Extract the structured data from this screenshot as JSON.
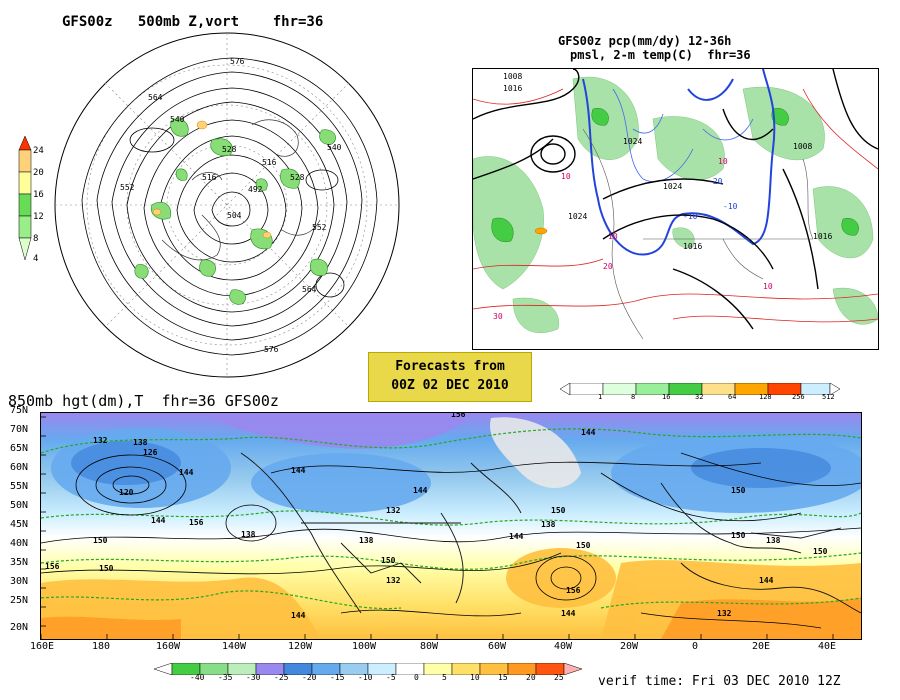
{
  "panel_polar": {
    "title": "GFS00z   500mb Z,vort    fhr=36",
    "contour_labels": [
      "576",
      "564",
      "552",
      "540",
      "528",
      "516",
      "504",
      "492",
      "516",
      "528",
      "540",
      "552",
      "564",
      "576"
    ],
    "colorbar": {
      "ticks": [
        "24",
        "20",
        "16",
        "12",
        "8",
        "4"
      ],
      "colors": [
        "#ff3300",
        "#ffd27a",
        "#ffff99",
        "#66dd55",
        "#99ee88",
        "#ddffcc"
      ]
    }
  },
  "panel_precip": {
    "title_line1": "GFS00z pcp(mm/dy) 12-36h",
    "title_line2": "pmsl, 2-m temp(C)  fhr=36",
    "contour_labels": [
      "1008",
      "1016",
      "1024",
      "1024",
      "1016",
      "1008",
      "1016",
      "1024",
      "10",
      "10",
      "20",
      "30",
      "10",
      "-10",
      "-20",
      "-10",
      "10"
    ],
    "colorbar": {
      "ticks": [
        "1",
        "8",
        "16",
        "32",
        "64",
        "128",
        "256",
        "512"
      ],
      "colors": [
        "#ddffdd",
        "#99ee99",
        "#44cc44",
        "#ffe08a",
        "#ffa500",
        "#ff4500",
        "#cc66ff",
        "#ffffff"
      ]
    }
  },
  "forecast_box": {
    "line1": "Forecasts from",
    "line2": "00Z 02 DEC 2010"
  },
  "panel_850": {
    "title": "850mb hgt(dm),T  fhr=36 GFS00z",
    "lat_labels": [
      "75N",
      "70N",
      "65N",
      "60N",
      "55N",
      "50N",
      "45N",
      "40N",
      "35N",
      "30N",
      "25N",
      "20N"
    ],
    "lon_labels": [
      "160E",
      "180",
      "160W",
      "140W",
      "120W",
      "100W",
      "80W",
      "60W",
      "40W",
      "20W",
      "0",
      "20E",
      "40E"
    ],
    "contour_labels": [
      "132",
      "138",
      "126",
      "120",
      "144",
      "156",
      "150",
      "156",
      "144",
      "150",
      "138",
      "144",
      "132",
      "150",
      "156",
      "144",
      "138",
      "132",
      "150",
      "138",
      "144",
      "150",
      "156",
      "144",
      "150",
      "150",
      "132",
      "144",
      "138",
      "150",
      "144",
      "144"
    ],
    "colorbar": {
      "ticks": [
        "-40",
        "-35",
        "-30",
        "-25",
        "-20",
        "-15",
        "-10",
        "-5",
        "0",
        "5",
        "10",
        "15",
        "20",
        "25"
      ],
      "colors": [
        "#44cc44",
        "#88dd88",
        "#bbeebb",
        "#9988ee",
        "#4488dd",
        "#66aaee",
        "#99ccee",
        "#cceeff",
        "#ffffff",
        "#ffffaa",
        "#ffe066",
        "#ffc040",
        "#ff9922",
        "#ff5511"
      ]
    }
  },
  "verif_time": "verif time: Fri 03 DEC 2010 12Z"
}
